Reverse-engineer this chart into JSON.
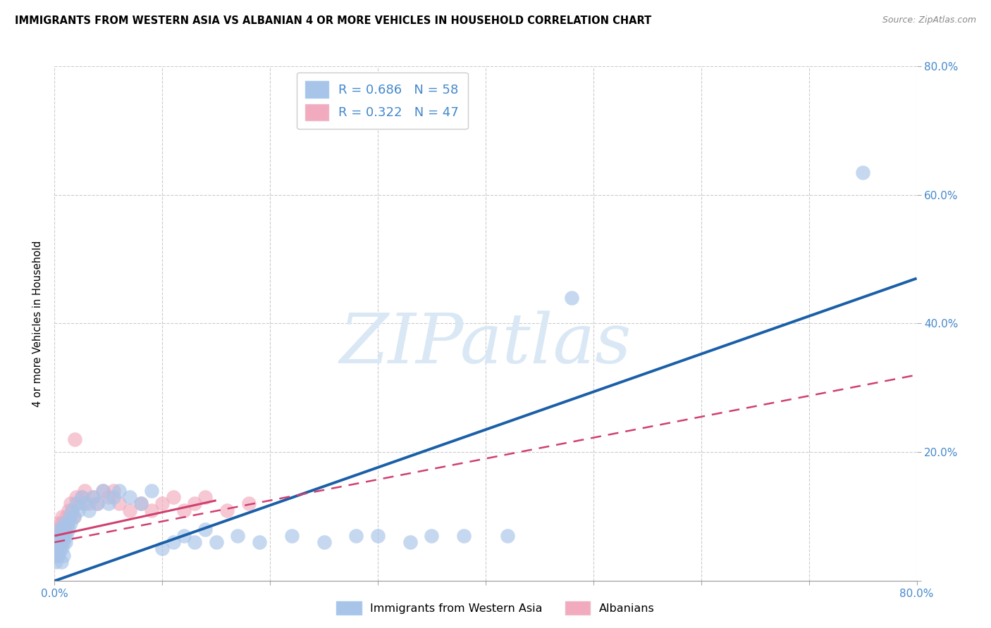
{
  "title": "IMMIGRANTS FROM WESTERN ASIA VS ALBANIAN 4 OR MORE VEHICLES IN HOUSEHOLD CORRELATION CHART",
  "source": "Source: ZipAtlas.com",
  "ylabel": "4 or more Vehicles in Household",
  "xlim": [
    0,
    0.8
  ],
  "ylim": [
    0,
    0.8
  ],
  "blue_R": 0.686,
  "blue_N": 58,
  "pink_R": 0.322,
  "pink_N": 47,
  "blue_color": "#a8c4e8",
  "pink_color": "#f2abbe",
  "blue_line_color": "#1a5fa8",
  "pink_line_color": "#d04070",
  "watermark": "ZIPatlas",
  "watermark_color": "#dae8f5",
  "legend1": "Immigrants from Western Asia",
  "legend2": "Albanians",
  "axis_label_color": "#4488cc",
  "blue_scatter_x": [
    0.001,
    0.002,
    0.002,
    0.003,
    0.003,
    0.004,
    0.004,
    0.005,
    0.005,
    0.006,
    0.006,
    0.007,
    0.007,
    0.008,
    0.008,
    0.009,
    0.009,
    0.01,
    0.01,
    0.011,
    0.012,
    0.013,
    0.014,
    0.015,
    0.016,
    0.018,
    0.02,
    0.022,
    0.025,
    0.028,
    0.032,
    0.036,
    0.04,
    0.045,
    0.05,
    0.055,
    0.06,
    0.07,
    0.08,
    0.09,
    0.1,
    0.11,
    0.12,
    0.13,
    0.14,
    0.15,
    0.17,
    0.19,
    0.22,
    0.25,
    0.28,
    0.3,
    0.33,
    0.35,
    0.38,
    0.42,
    0.48,
    0.75
  ],
  "blue_scatter_y": [
    0.03,
    0.04,
    0.06,
    0.05,
    0.07,
    0.04,
    0.08,
    0.05,
    0.06,
    0.03,
    0.07,
    0.05,
    0.08,
    0.06,
    0.04,
    0.07,
    0.09,
    0.06,
    0.08,
    0.07,
    0.09,
    0.08,
    0.1,
    0.09,
    0.11,
    0.1,
    0.12,
    0.11,
    0.13,
    0.12,
    0.11,
    0.13,
    0.12,
    0.14,
    0.12,
    0.13,
    0.14,
    0.13,
    0.12,
    0.14,
    0.05,
    0.06,
    0.07,
    0.06,
    0.08,
    0.06,
    0.07,
    0.06,
    0.07,
    0.06,
    0.07,
    0.07,
    0.06,
    0.07,
    0.07,
    0.07,
    0.44,
    0.635
  ],
  "pink_scatter_x": [
    0.001,
    0.001,
    0.002,
    0.002,
    0.003,
    0.003,
    0.004,
    0.004,
    0.005,
    0.005,
    0.006,
    0.006,
    0.007,
    0.007,
    0.008,
    0.008,
    0.009,
    0.01,
    0.011,
    0.012,
    0.013,
    0.014,
    0.015,
    0.016,
    0.018,
    0.02,
    0.022,
    0.025,
    0.028,
    0.032,
    0.036,
    0.04,
    0.045,
    0.05,
    0.055,
    0.06,
    0.07,
    0.08,
    0.09,
    0.1,
    0.11,
    0.12,
    0.13,
    0.14,
    0.16,
    0.18,
    0.019
  ],
  "pink_scatter_y": [
    0.04,
    0.06,
    0.05,
    0.07,
    0.04,
    0.08,
    0.05,
    0.09,
    0.06,
    0.08,
    0.07,
    0.09,
    0.06,
    0.1,
    0.07,
    0.09,
    0.08,
    0.09,
    0.1,
    0.09,
    0.11,
    0.1,
    0.12,
    0.11,
    0.1,
    0.13,
    0.12,
    0.13,
    0.14,
    0.12,
    0.13,
    0.12,
    0.14,
    0.13,
    0.14,
    0.12,
    0.11,
    0.12,
    0.11,
    0.12,
    0.13,
    0.11,
    0.12,
    0.13,
    0.11,
    0.12,
    0.22
  ],
  "blue_line_x0": 0.0,
  "blue_line_y0": 0.0,
  "blue_line_x1": 0.8,
  "blue_line_y1": 0.47,
  "pink_line_x0": 0.0,
  "pink_line_y0": 0.06,
  "pink_line_x1": 0.8,
  "pink_line_y1": 0.32
}
